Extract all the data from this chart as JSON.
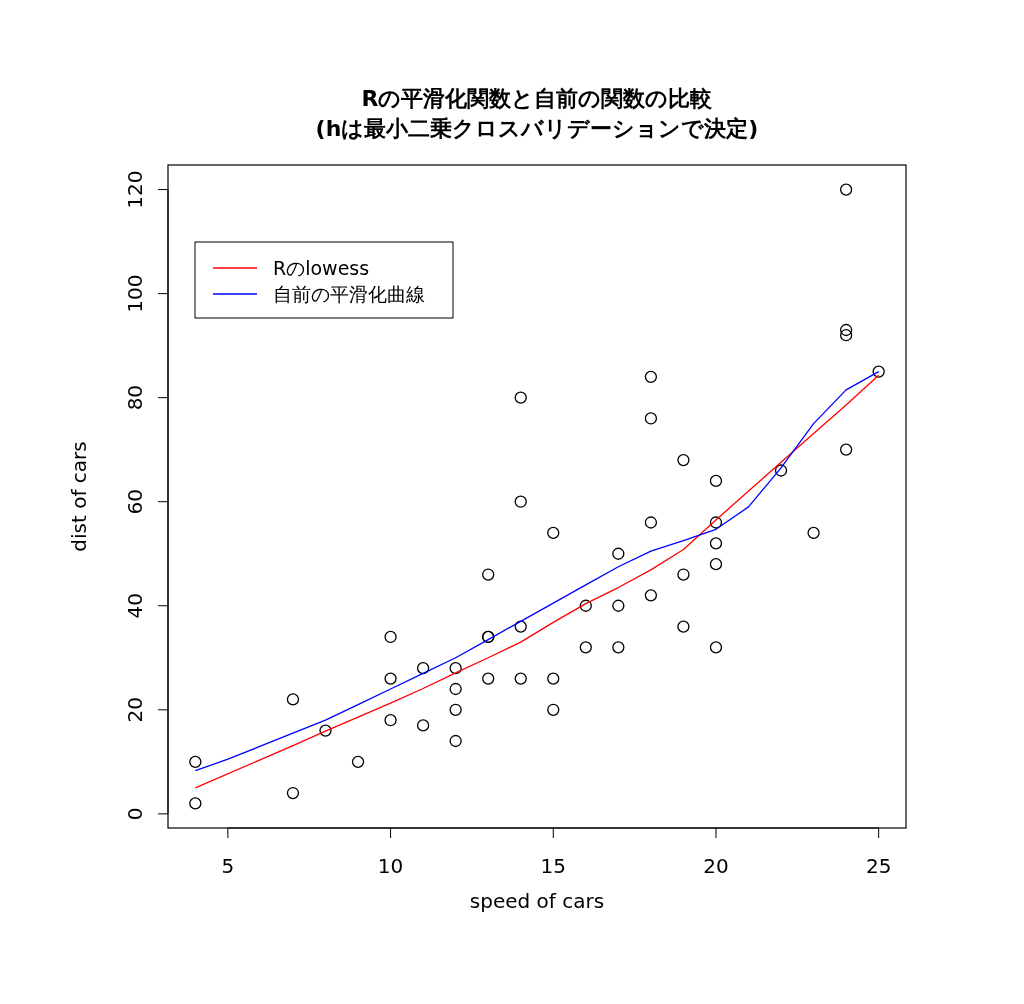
{
  "chart_data": {
    "type": "scatter",
    "title": "Rの平滑化関数と自前の関数の比較\n(hは最小二乗クロスバリデーションで決定)",
    "xlabel": "speed of cars",
    "ylabel": "dist of cars",
    "xlim": [
      3.16,
      25.84
    ],
    "ylim": [
      -2.72,
      124.72
    ],
    "xticks": [
      5,
      10,
      15,
      20,
      25
    ],
    "yticks": [
      0,
      20,
      40,
      60,
      80,
      100,
      120
    ],
    "legend": "top left",
    "grid": false,
    "series": [
      {
        "marker": "circle",
        "color": "#000000",
        "x": [
          4,
          4,
          7,
          7,
          8,
          9,
          10,
          10,
          10,
          11,
          11,
          12,
          12,
          12,
          12,
          13,
          13,
          13,
          13,
          14,
          14,
          14,
          14,
          15,
          15,
          15,
          16,
          16,
          17,
          17,
          17,
          18,
          18,
          18,
          18,
          19,
          19,
          19,
          20,
          20,
          20,
          20,
          20,
          22,
          23,
          24,
          24,
          24,
          24,
          25
        ],
        "values": [
          2,
          10,
          4,
          22,
          16,
          10,
          18,
          26,
          34,
          17,
          28,
          14,
          20,
          24,
          28,
          26,
          34,
          34,
          46,
          26,
          36,
          60,
          80,
          20,
          26,
          54,
          32,
          40,
          32,
          40,
          50,
          42,
          56,
          76,
          84,
          36,
          46,
          68,
          32,
          48,
          52,
          56,
          64,
          66,
          54,
          70,
          92,
          93,
          120,
          85
        ]
      },
      {
        "type": "line",
        "name": "Rのlowess",
        "color": "#ff0000",
        "x": [
          4,
          7,
          8,
          9,
          10,
          11,
          12,
          13,
          14,
          15,
          16,
          17,
          18,
          19,
          20,
          22,
          23,
          24,
          25
        ],
        "values": [
          5.0,
          13.1,
          15.9,
          18.6,
          21.3,
          24.1,
          27.1,
          30.0,
          33.0,
          36.8,
          40.4,
          43.5,
          46.9,
          50.8,
          56.5,
          67.6,
          73.1,
          78.6,
          84.3
        ]
      },
      {
        "type": "line",
        "name": "自前の平滑化曲線",
        "color": "#0000ff",
        "x": [
          4,
          5,
          6,
          7,
          8,
          9,
          10,
          11,
          12,
          13,
          14,
          15,
          16,
          17,
          18,
          19,
          20,
          21,
          22,
          23,
          24,
          25
        ],
        "values": [
          8.3,
          10.5,
          13,
          15.5,
          18,
          21,
          24,
          27,
          30,
          33.5,
          37,
          40.5,
          44,
          47.5,
          50.5,
          52.5,
          54.7,
          59,
          66.5,
          75,
          81.5,
          85
        ]
      }
    ]
  }
}
